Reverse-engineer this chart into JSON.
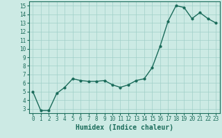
{
  "title": "",
  "xlabel": "Humidex (Indice chaleur)",
  "ylabel": "",
  "x": [
    0,
    1,
    2,
    3,
    4,
    5,
    6,
    7,
    8,
    9,
    10,
    11,
    12,
    13,
    14,
    15,
    16,
    17,
    18,
    19,
    20,
    21,
    22,
    23
  ],
  "y": [
    5.0,
    2.8,
    2.8,
    4.8,
    5.5,
    6.5,
    6.3,
    6.2,
    6.2,
    6.3,
    5.8,
    5.5,
    5.8,
    6.3,
    6.5,
    7.8,
    10.3,
    13.2,
    15.0,
    14.8,
    13.5,
    14.2,
    13.5,
    13.0
  ],
  "line_color": "#1a6b5a",
  "marker": "o",
  "marker_size": 2.0,
  "line_width": 1.0,
  "bg_color": "#cceae4",
  "grid_color": "#a0cfc8",
  "xlim": [
    -0.5,
    23.5
  ],
  "ylim": [
    2.5,
    15.5
  ],
  "yticks": [
    3,
    4,
    5,
    6,
    7,
    8,
    9,
    10,
    11,
    12,
    13,
    14,
    15
  ],
  "xticks": [
    0,
    1,
    2,
    3,
    4,
    5,
    6,
    7,
    8,
    9,
    10,
    11,
    12,
    13,
    14,
    15,
    16,
    17,
    18,
    19,
    20,
    21,
    22,
    23
  ],
  "tick_fontsize": 5.5,
  "xlabel_fontsize": 7,
  "font_family": "monospace"
}
